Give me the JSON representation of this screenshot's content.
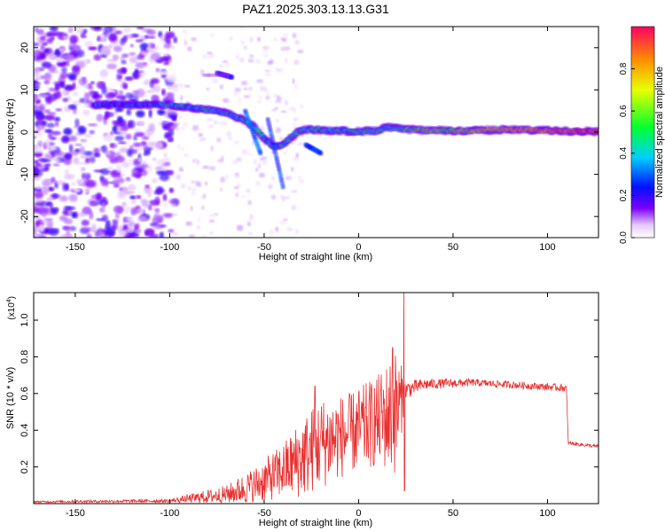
{
  "title": "PAZ1.2025.303.13.13.G31",
  "chart_data": [
    {
      "type": "heatmap",
      "xlabel": "Height of straight line (km)",
      "ylabel": "Frequency (Hz)",
      "xlim": [
        -172,
        127
      ],
      "ylim": [
        -25,
        25
      ],
      "xticks": [
        -150,
        -100,
        -50,
        0,
        50,
        100
      ],
      "yticks": [
        -20,
        -10,
        0,
        10,
        20
      ],
      "ridge": {
        "x": [
          -140,
          -120,
          -105,
          -95,
          -85,
          -78,
          -70,
          -62,
          -56,
          -50,
          -45,
          -40,
          -35,
          -30,
          -20,
          -10,
          0,
          10,
          15,
          25,
          50,
          80,
          110,
          125
        ],
        "y": [
          6.5,
          6.5,
          6.6,
          6.2,
          5.6,
          5.2,
          4.5,
          3.2,
          1.5,
          -1.5,
          -3.5,
          -3,
          -1,
          0.6,
          0.5,
          0.3,
          0.2,
          0.3,
          1.2,
          0.6,
          0.3,
          0.6,
          0.3,
          0.2
        ]
      },
      "colorbar": {
        "label": "Normalized spectral amplitude",
        "ticks": [
          "0.0",
          "0.2",
          "0.4",
          "0.6",
          "0.8"
        ]
      }
    },
    {
      "type": "line",
      "xlabel": "Height of straight line (km)",
      "ylabel": "SNR (10 * v/v)",
      "scale_label": "(x10",
      "scale_exp": "4",
      "xlim": [
        -172,
        127
      ],
      "ylim": [
        0,
        1.15
      ],
      "xticks": [
        -150,
        -100,
        -50,
        0,
        50,
        100
      ],
      "yticks": [
        "0.2",
        "0.4",
        "0.6",
        "0.8",
        "1.0"
      ],
      "color": "#e83030",
      "segments": [
        {
          "x": -172,
          "y": 0.01,
          "noise": 0.005
        },
        {
          "x": -100,
          "y": 0.015,
          "noise": 0.01
        },
        {
          "x": -70,
          "y": 0.05,
          "noise": 0.05
        },
        {
          "x": -55,
          "y": 0.1,
          "noise": 0.1
        },
        {
          "x": -40,
          "y": 0.18,
          "noise": 0.15
        },
        {
          "x": -30,
          "y": 0.25,
          "noise": 0.22
        },
        {
          "x": -20,
          "y": 0.33,
          "noise": 0.25
        },
        {
          "x": -5,
          "y": 0.38,
          "noise": 0.22
        },
        {
          "x": 10,
          "y": 0.45,
          "noise": 0.25
        },
        {
          "x": 20,
          "y": 0.5,
          "noise": 0.35
        },
        {
          "x": 25,
          "y": 0.62,
          "noise": 0.05
        },
        {
          "x": 35,
          "y": 0.65,
          "noise": 0.03
        },
        {
          "x": 60,
          "y": 0.66,
          "noise": 0.02
        },
        {
          "x": 110,
          "y": 0.63,
          "noise": 0.02
        },
        {
          "x": 111,
          "y": 0.33,
          "noise": 0.01
        },
        {
          "x": 127,
          "y": 0.31,
          "noise": 0.01
        }
      ],
      "spikes": [
        {
          "x": -23,
          "y": 0.64
        },
        {
          "x": 18,
          "y": 0.85
        },
        {
          "x": 24,
          "y": 1.17
        },
        {
          "x": 24.3,
          "y": 0.07
        }
      ]
    }
  ]
}
